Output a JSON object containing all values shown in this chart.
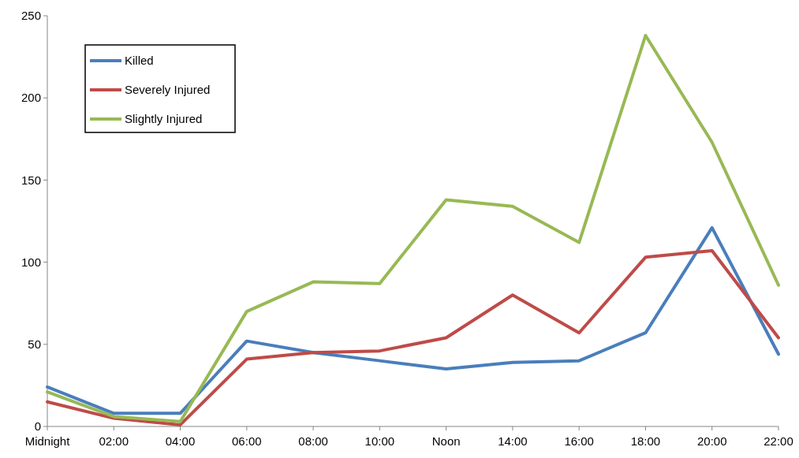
{
  "chart_data": {
    "type": "line",
    "categories": [
      "Midnight",
      "02:00",
      "04:00",
      "06:00",
      "08:00",
      "10:00",
      "Noon",
      "14:00",
      "16:00",
      "18:00",
      "20:00",
      "22:00"
    ],
    "series": [
      {
        "name": "Killed",
        "color": "#4a7ebb",
        "values": [
          24,
          8,
          8,
          52,
          45,
          40,
          35,
          39,
          40,
          57,
          121,
          44
        ]
      },
      {
        "name": "Severely Injured",
        "color": "#be4b48",
        "values": [
          15,
          5,
          1,
          41,
          45,
          46,
          54,
          80,
          57,
          103,
          107,
          54
        ]
      },
      {
        "name": "Slightly Injured",
        "color": "#98b954",
        "values": [
          21,
          6,
          3,
          70,
          88,
          87,
          138,
          134,
          112,
          238,
          173,
          86
        ]
      }
    ],
    "ylim": [
      0,
      250
    ],
    "yticks": [
      0,
      50,
      100,
      150,
      200,
      250
    ],
    "legend": "top left",
    "grid": false,
    "marker": "none",
    "line_style": "solid"
  }
}
